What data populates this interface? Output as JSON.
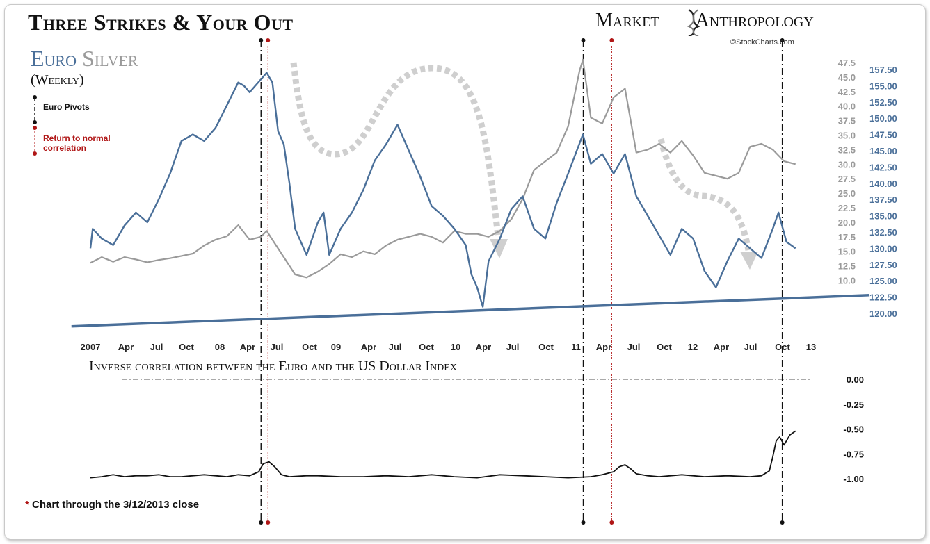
{
  "header": {
    "title": "Three Strikes & Your Out",
    "subtitle_euro": "Euro",
    "subtitle_silver": "Silver",
    "frequency": "(Weekly)",
    "brand_left": "Market",
    "brand_right": "Anthropology",
    "credit": "©StockCharts.com"
  },
  "legend": {
    "pivots": "Euro Pivots",
    "normal": "Return to normal correlation"
  },
  "colors": {
    "euro": "#4a6f99",
    "silver": "#9a9a9a",
    "arrows": "#cfcfcf",
    "pivot": "#111111",
    "normal": "#b01616"
  },
  "footnote": {
    "star": "*",
    "text": "Chart through the 3/12/2013 close"
  },
  "chart_data": [
    {
      "type": "line",
      "title": "Three Strikes & Your Out",
      "x_ticks": [
        "2007",
        "Apr",
        "Jul",
        "Oct",
        "08",
        "Apr",
        "Jul",
        "Oct",
        "09",
        "Apr",
        "Jul",
        "Oct",
        "10",
        "Apr",
        "Jul",
        "Oct",
        "11",
        "Apr",
        "Jul",
        "Oct",
        "12",
        "Apr",
        "Jul",
        "Oct",
        "13"
      ],
      "x_range": [
        "2007-01",
        "2013-03"
      ],
      "silver_axis": {
        "ticks": [
          "47.5",
          "45.0",
          "42.5",
          "40.0",
          "37.5",
          "35.0",
          "32.5",
          "30.0",
          "27.5",
          "25.0",
          "22.5",
          "20.0",
          "17.5",
          "15.0",
          "12.5",
          "10.0"
        ],
        "ylim": [
          9,
          48
        ]
      },
      "euro_axis": {
        "ticks": [
          "157.50",
          "155.00",
          "152.50",
          "150.00",
          "147.50",
          "145.00",
          "142.50",
          "140.00",
          "137.50",
          "135.00",
          "132.50",
          "130.00",
          "127.50",
          "125.00",
          "122.50",
          "120.00"
        ],
        "ylim": [
          119,
          159
        ]
      },
      "series": [
        {
          "name": "Euro",
          "axis": "euro",
          "x": [
            2007.0,
            2007.02,
            2007.1,
            2007.2,
            2007.3,
            2007.4,
            2007.5,
            2007.6,
            2007.7,
            2007.8,
            2007.9,
            2008.0,
            2008.1,
            2008.2,
            2008.3,
            2008.35,
            2008.4,
            2008.5,
            2008.55,
            2008.6,
            2008.65,
            2008.7,
            2008.75,
            2008.8,
            2008.9,
            2009.0,
            2009.05,
            2009.1,
            2009.2,
            2009.3,
            2009.4,
            2009.5,
            2009.6,
            2009.7,
            2009.8,
            2009.9,
            2010.0,
            2010.1,
            2010.2,
            2010.3,
            2010.35,
            2010.4,
            2010.45,
            2010.5,
            2010.6,
            2010.7,
            2010.8,
            2010.9,
            2011.0,
            2011.1,
            2011.2,
            2011.33,
            2011.4,
            2011.5,
            2011.6,
            2011.7,
            2011.8,
            2011.9,
            2012.0,
            2012.1,
            2012.2,
            2012.3,
            2012.4,
            2012.5,
            2012.6,
            2012.7,
            2012.8,
            2012.9,
            2013.0,
            2013.05,
            2013.12,
            2013.2
          ],
          "values": [
            130.0,
            133.0,
            131.5,
            130.5,
            133.5,
            135.5,
            134.0,
            137.5,
            141.5,
            146.5,
            147.5,
            146.5,
            148.5,
            152.0,
            155.5,
            155.0,
            154.0,
            156.0,
            157.0,
            155.5,
            148.0,
            146.0,
            140.0,
            133.0,
            129.0,
            134.0,
            135.5,
            129.0,
            133.0,
            135.5,
            139.0,
            143.5,
            146.0,
            149.0,
            145.0,
            141.0,
            136.5,
            135.0,
            133.0,
            130.5,
            126.0,
            124.0,
            121.0,
            128.0,
            131.5,
            136.0,
            138.0,
            133.0,
            131.5,
            137.0,
            141.5,
            147.5,
            143.0,
            144.5,
            141.5,
            144.5,
            138.0,
            135.0,
            132.0,
            129.0,
            133.0,
            131.5,
            126.5,
            124.0,
            128.0,
            131.5,
            130.0,
            128.5,
            133.0,
            135.5,
            131.0,
            130.0
          ]
        },
        {
          "name": "Silver",
          "axis": "silver",
          "x": [
            2007.0,
            2007.1,
            2007.2,
            2007.3,
            2007.4,
            2007.5,
            2007.6,
            2007.7,
            2007.8,
            2007.9,
            2008.0,
            2008.1,
            2008.2,
            2008.3,
            2008.4,
            2008.5,
            2008.55,
            2008.6,
            2008.7,
            2008.8,
            2008.9,
            2009.0,
            2009.1,
            2009.2,
            2009.3,
            2009.4,
            2009.5,
            2009.6,
            2009.7,
            2009.8,
            2009.9,
            2010.0,
            2010.1,
            2010.2,
            2010.3,
            2010.4,
            2010.5,
            2010.6,
            2010.7,
            2010.8,
            2010.9,
            2011.0,
            2011.1,
            2011.2,
            2011.3,
            2011.33,
            2011.4,
            2011.5,
            2011.6,
            2011.7,
            2011.8,
            2011.9,
            2012.0,
            2012.1,
            2012.2,
            2012.3,
            2012.4,
            2012.5,
            2012.6,
            2012.7,
            2012.8,
            2012.9,
            2013.0,
            2013.1,
            2013.2
          ],
          "values": [
            13.0,
            14.0,
            13.2,
            14.0,
            13.6,
            13.1,
            13.5,
            13.8,
            14.2,
            14.6,
            16.0,
            17.0,
            17.6,
            19.5,
            17.0,
            17.5,
            18.5,
            17.0,
            14.0,
            11.0,
            10.5,
            11.5,
            12.8,
            14.5,
            14.0,
            15.0,
            14.5,
            16.0,
            17.0,
            17.5,
            18.0,
            17.5,
            16.5,
            18.5,
            18.0,
            18.0,
            17.5,
            18.5,
            20.5,
            24.0,
            29.0,
            30.5,
            32.0,
            36.5,
            46.0,
            48.0,
            38.0,
            37.0,
            41.5,
            43.0,
            32.0,
            32.5,
            33.5,
            32.0,
            34.0,
            31.5,
            28.5,
            28.0,
            27.5,
            28.5,
            33.0,
            33.5,
            32.5,
            30.5,
            30.0
          ]
        }
      ],
      "pivots": [
        "2008-07",
        "2011-05",
        "2013-02"
      ],
      "normal_correlation": [
        "2008-07",
        "2011-08"
      ],
      "trendline": {
        "from": [
          "2006-11",
          118.0
        ],
        "to": [
          "2013-07",
          122.8
        ]
      }
    },
    {
      "type": "line",
      "title": "Inverse correlation between the Euro and the US Dollar Index",
      "y_ticks": [
        "0.00",
        "-0.25",
        "-0.50",
        "-0.75",
        "-1.00"
      ],
      "ylim": [
        -1.05,
        0.05
      ],
      "series": [
        {
          "x": [
            2007.0,
            2007.1,
            2007.2,
            2007.3,
            2007.4,
            2007.5,
            2007.6,
            2007.7,
            2007.8,
            2007.9,
            2008.0,
            2008.1,
            2008.2,
            2008.3,
            2008.4,
            2008.48,
            2008.52,
            2008.57,
            2008.62,
            2008.68,
            2008.75,
            2008.9,
            2009.0,
            2009.2,
            2009.4,
            2009.6,
            2009.8,
            2010.0,
            2010.2,
            2010.4,
            2010.6,
            2010.8,
            2011.0,
            2011.2,
            2011.4,
            2011.5,
            2011.6,
            2011.65,
            2011.7,
            2011.75,
            2011.8,
            2011.9,
            2012.0,
            2012.2,
            2012.4,
            2012.6,
            2012.8,
            2012.9,
            2012.97,
            2013.0,
            2013.03,
            2013.06,
            2013.1,
            2013.15,
            2013.2
          ],
          "values": [
            -0.99,
            -0.98,
            -0.96,
            -0.98,
            -0.97,
            -0.97,
            -0.96,
            -0.98,
            -0.98,
            -0.97,
            -0.96,
            -0.97,
            -0.98,
            -0.96,
            -0.97,
            -0.93,
            -0.85,
            -0.83,
            -0.88,
            -0.96,
            -0.98,
            -0.97,
            -0.97,
            -0.98,
            -0.98,
            -0.97,
            -0.98,
            -0.96,
            -0.98,
            -0.99,
            -0.96,
            -0.97,
            -0.98,
            -0.99,
            -0.98,
            -0.96,
            -0.93,
            -0.88,
            -0.86,
            -0.9,
            -0.95,
            -0.97,
            -0.98,
            -0.96,
            -0.98,
            -0.97,
            -0.98,
            -0.97,
            -0.92,
            -0.78,
            -0.62,
            -0.58,
            -0.66,
            -0.56,
            -0.52
          ]
        }
      ]
    }
  ]
}
